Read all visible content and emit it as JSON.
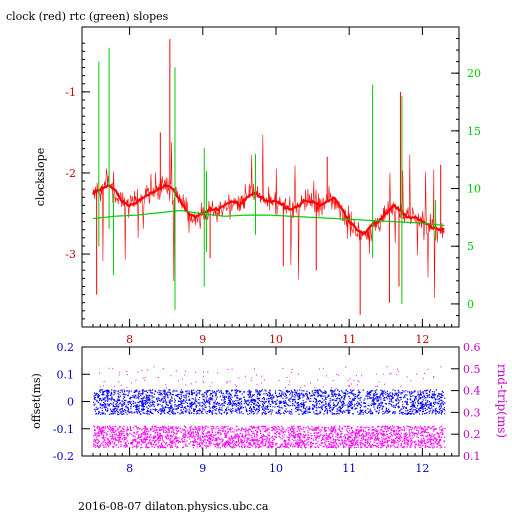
{
  "chart_data": [
    {
      "type": "line",
      "title": "clock (red) rtc (green) slopes",
      "xlabel": "",
      "ylabel": "clockslope",
      "y2label": "",
      "xlim": [
        7.35,
        12.5
      ],
      "ylim": [
        -3.9,
        -0.2
      ],
      "y2lim": [
        -2.0,
        24.0
      ],
      "x_ticks": [
        "8",
        "9",
        "10",
        "11",
        "12"
      ],
      "y_ticks": [
        "-1",
        "-2",
        "-3"
      ],
      "y2_ticks": [
        "20",
        "15",
        "10",
        "5",
        "0"
      ],
      "colors": {
        "clock": "#ff0000",
        "rtc": "#00cc00",
        "axis": "#000000",
        "xtick": "#cc0000",
        "y2tick": "#00cc00"
      },
      "series": [
        {
          "color": "#ff0000",
          "x": [
            7.5,
            7.6,
            7.7,
            7.8,
            7.9,
            8.0,
            8.1,
            8.2,
            8.3,
            8.4,
            8.5,
            8.6,
            8.7,
            8.8,
            8.9,
            9.0,
            9.1,
            9.2,
            9.3,
            9.4,
            9.5,
            9.6,
            9.7,
            9.8,
            9.9,
            10.0,
            10.1,
            10.2,
            10.3,
            10.4,
            10.5,
            10.6,
            10.7,
            10.8,
            10.9,
            11.0,
            11.1,
            11.2,
            11.3,
            11.4,
            11.5,
            11.6,
            11.7,
            11.8,
            11.9,
            12.0,
            12.1,
            12.2,
            12.3
          ],
          "y": [
            -2.25,
            -2.2,
            -2.15,
            -2.2,
            -2.35,
            -2.4,
            -2.35,
            -2.3,
            -2.25,
            -2.2,
            -2.15,
            -2.2,
            -2.35,
            -2.5,
            -2.55,
            -2.5,
            -2.45,
            -2.45,
            -2.4,
            -2.35,
            -2.4,
            -2.3,
            -2.25,
            -2.3,
            -2.35,
            -2.35,
            -2.4,
            -2.45,
            -2.4,
            -2.35,
            -2.35,
            -2.4,
            -2.35,
            -2.3,
            -2.45,
            -2.6,
            -2.7,
            -2.75,
            -2.65,
            -2.6,
            -2.5,
            -2.4,
            -2.45,
            -2.55,
            -2.55,
            -2.6,
            -2.65,
            -2.7,
            -2.7
          ]
        },
        {
          "color": "#00cc00",
          "axis": "right",
          "x": [
            7.5,
            7.8,
            8.1,
            8.4,
            8.7,
            9.0,
            9.3,
            9.6,
            9.9,
            10.2,
            10.5,
            10.8,
            11.1,
            11.4,
            11.7,
            12.0,
            12.3
          ],
          "y": [
            7.4,
            7.6,
            7.7,
            7.9,
            8.1,
            7.8,
            7.6,
            7.7,
            7.7,
            7.6,
            7.5,
            7.4,
            7.3,
            7.2,
            7.1,
            7.0,
            6.8
          ]
        }
      ]
    },
    {
      "type": "scatter",
      "xlabel": "",
      "ylabel": "offset(ms)",
      "y2label": "rnd-trip(ms)",
      "xlim": [
        7.35,
        12.5
      ],
      "ylim": [
        -0.2,
        0.2
      ],
      "y2lim": [
        0.1,
        0.6
      ],
      "x_ticks": [
        "8",
        "9",
        "10",
        "11",
        "12"
      ],
      "y_ticks": [
        "0.2",
        "0.1",
        "0",
        "-0.1",
        "-0.2"
      ],
      "y2_ticks": [
        "0.6",
        "0.5",
        "0.4",
        "0.3",
        "0.2",
        "0.1"
      ],
      "colors": {
        "offset": "#0000ff",
        "rndtrip": "#ff00ff",
        "xtick": "#0000cc",
        "ytick": "#0000cc",
        "y2tick": "#cc00cc"
      },
      "series": [
        {
          "color": "#0000ff",
          "x_range": [
            7.5,
            12.3
          ],
          "y_center": 0.0,
          "y_spread": 0.045
        },
        {
          "color": "#ff00ff",
          "axis": "right",
          "x_range": [
            7.5,
            12.3
          ],
          "y_center": 0.19,
          "y_spread": 0.05
        }
      ]
    }
  ],
  "footer": "2016-08-07  dilaton.physics.ubc.ca"
}
